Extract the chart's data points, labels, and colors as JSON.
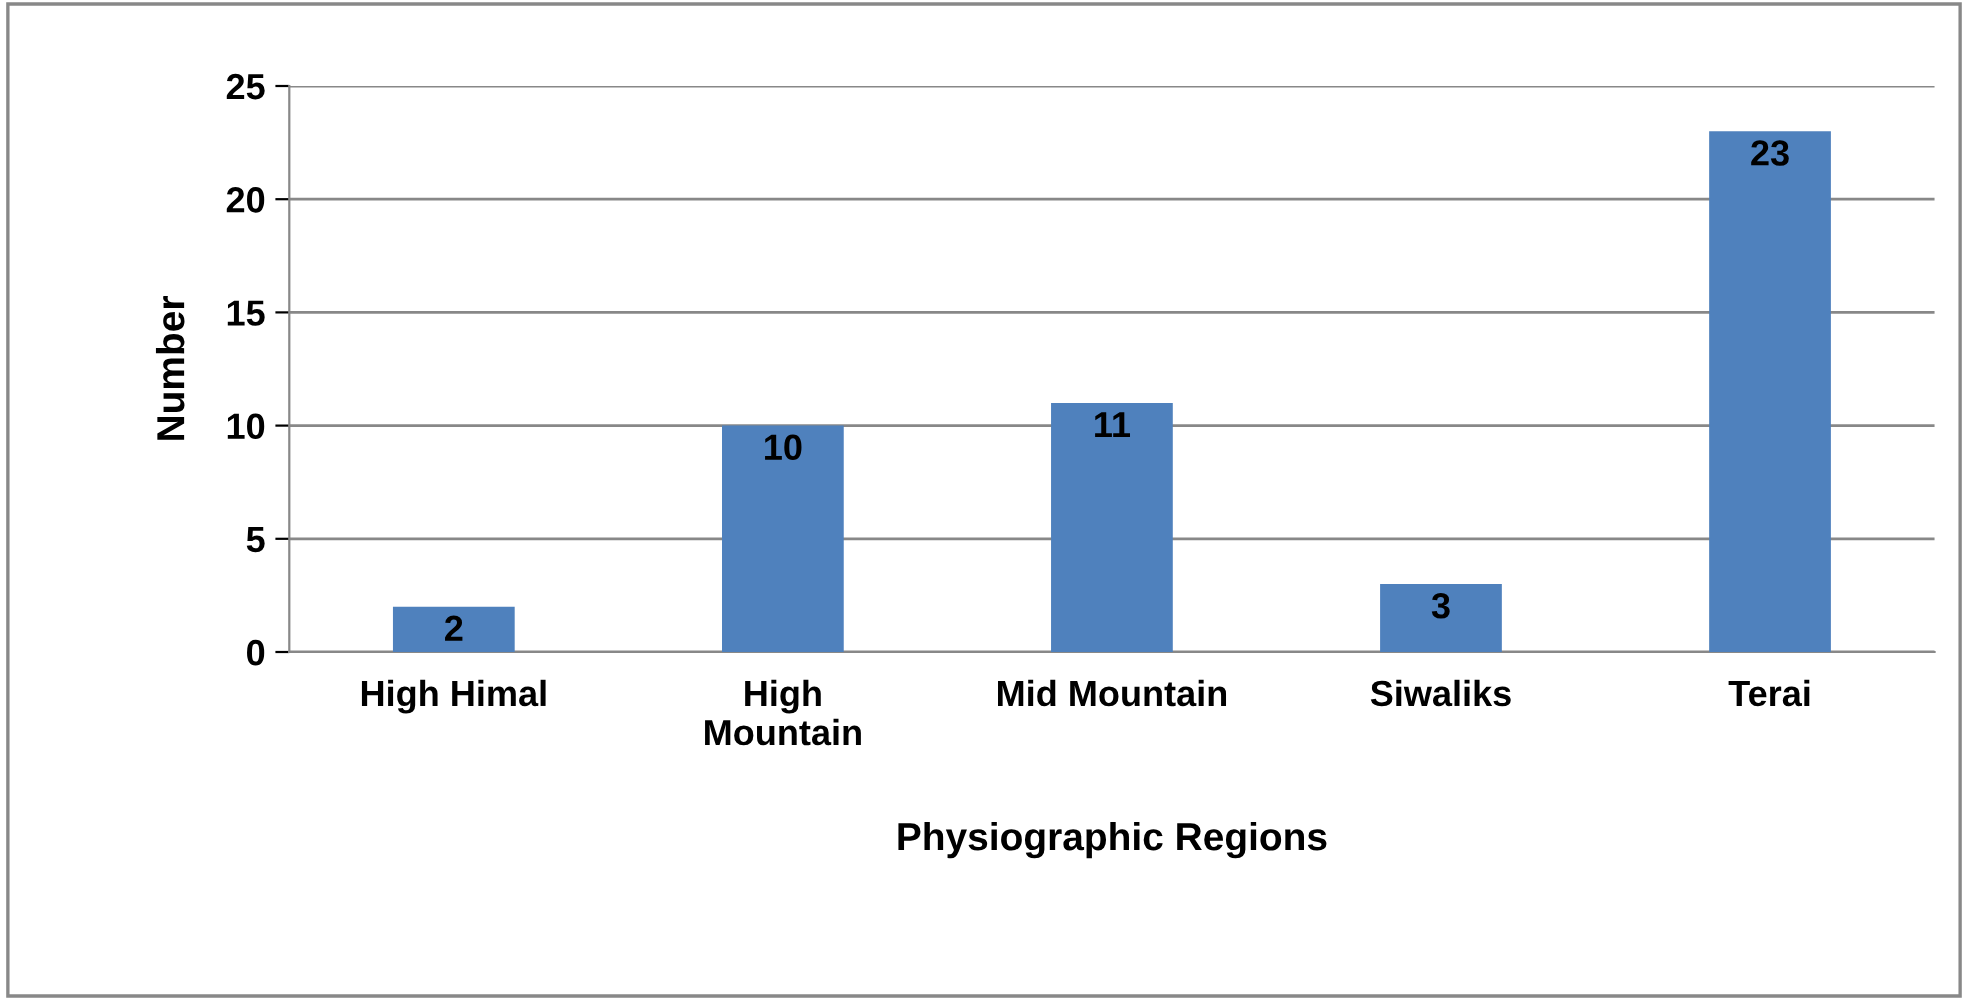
{
  "chart_data": {
    "type": "bar",
    "xlabel": "Physiographic Regions",
    "ylabel": "Number",
    "categories": [
      "High Himal",
      "High\nMountain",
      "Mid Mountain",
      "Siwaliks",
      "Terai"
    ],
    "values": [
      2,
      10,
      11,
      3,
      23
    ],
    "color": "#4f81bd",
    "ylim": [
      0,
      25
    ],
    "yticks": [
      0,
      5,
      10,
      15,
      20,
      25
    ],
    "grid": "y",
    "data_labels": true
  }
}
